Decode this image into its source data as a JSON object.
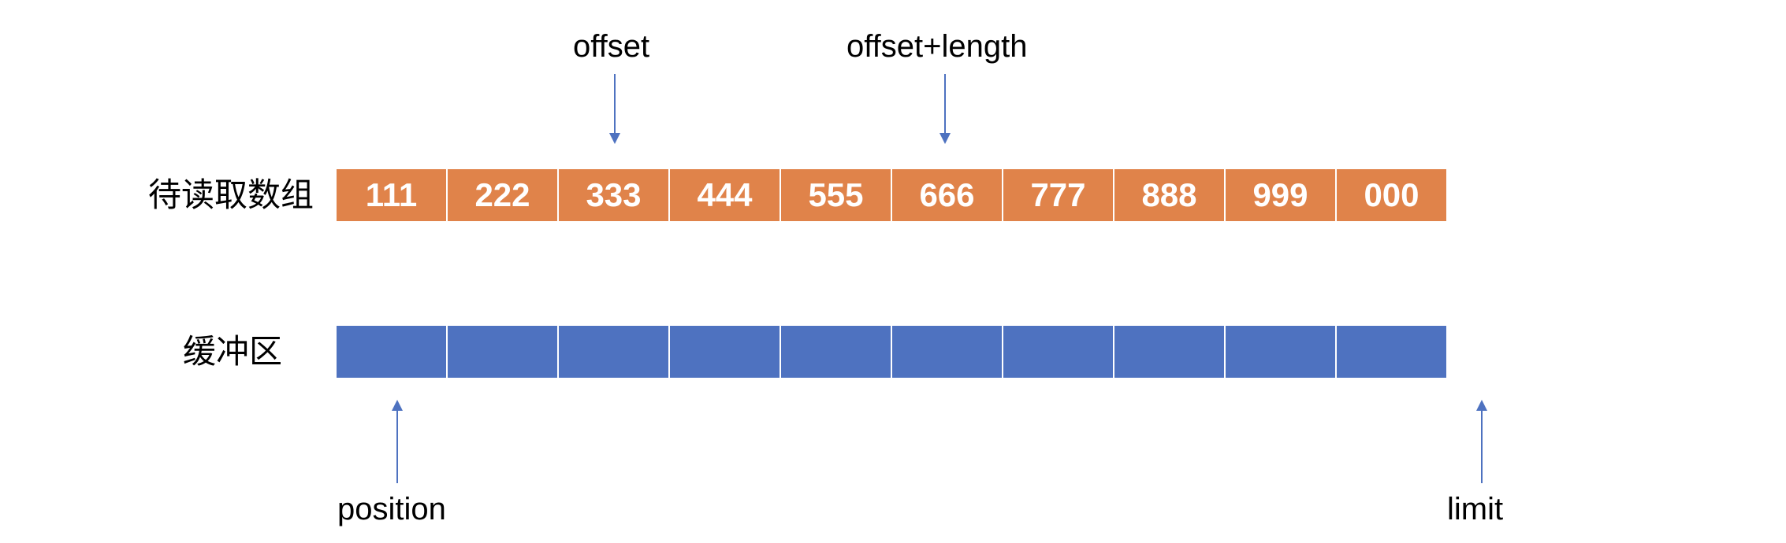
{
  "source_array": {
    "label": "待读取数组",
    "values": [
      "111",
      "222",
      "333",
      "444",
      "555",
      "666",
      "777",
      "888",
      "999",
      "000"
    ]
  },
  "buffer": {
    "label": "缓冲区",
    "cell_count": 10
  },
  "pointers": {
    "offset": "offset",
    "offset_length": "offset+length",
    "position": "position",
    "limit": "limit"
  },
  "colors": {
    "source_cell": "#e0834a",
    "buffer_cell": "#4e72c0",
    "arrow": "#4e72c0"
  }
}
